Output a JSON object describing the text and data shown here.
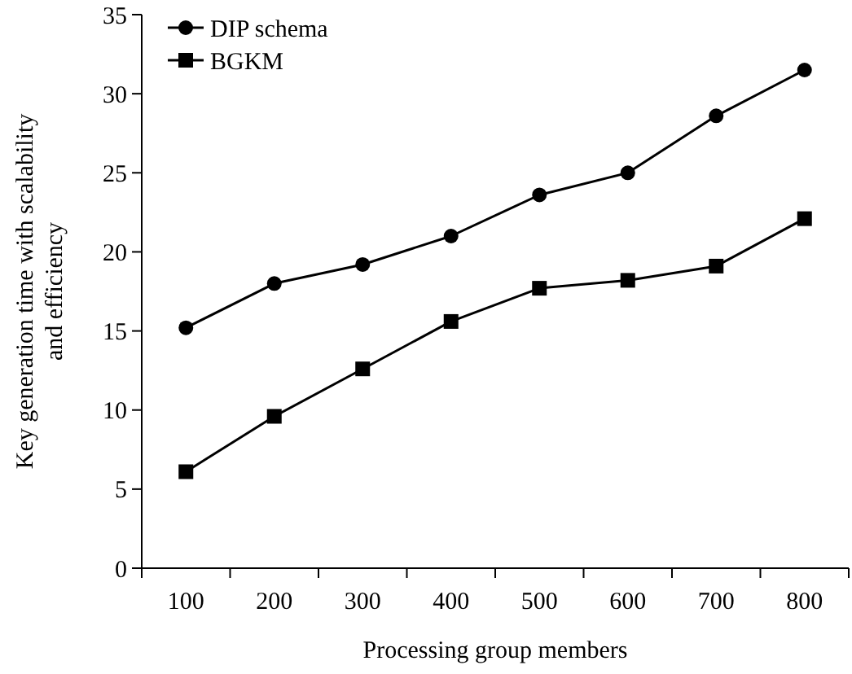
{
  "chart_data": {
    "type": "line",
    "xlabel": "Processing group members",
    "ylabel": "Key generation time with scalability\nand efficiency",
    "categories": [
      "100",
      "200",
      "300",
      "400",
      "500",
      "600",
      "700",
      "800"
    ],
    "series": [
      {
        "name": "DIP schema",
        "color": "#000000",
        "marker": "circle",
        "values": [
          15.2,
          18,
          19.2,
          21,
          23.6,
          25,
          28.6,
          31.5
        ]
      },
      {
        "name": "BGKM",
        "color": "#000000",
        "marker": "square",
        "values": [
          6.1,
          9.6,
          12.6,
          15.6,
          17.7,
          18.2,
          19.1,
          22.1
        ]
      }
    ],
    "ylim": [
      0,
      35
    ],
    "yticks": [
      0,
      5,
      10,
      15,
      20,
      25,
      30,
      35
    ],
    "grid": false,
    "legend": "top left",
    "line_style": "solid"
  }
}
